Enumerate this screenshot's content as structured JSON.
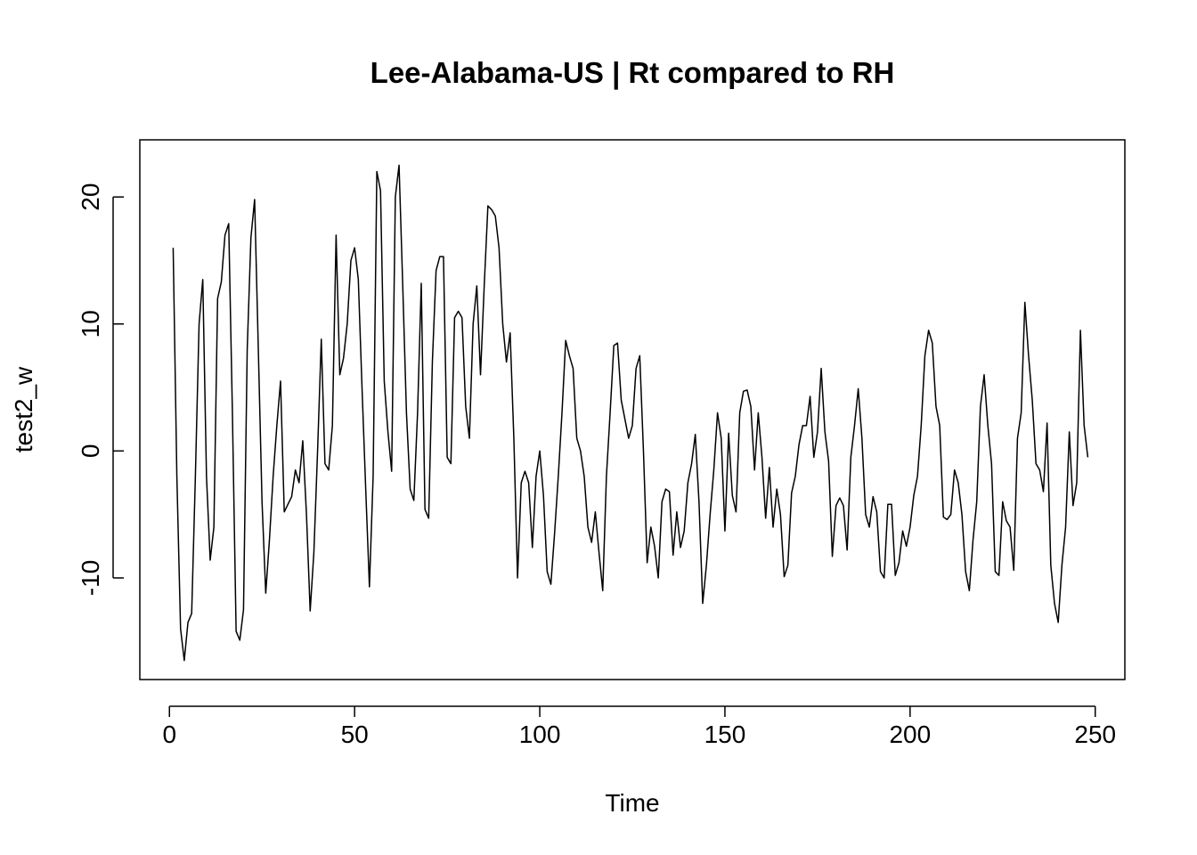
{
  "chart_data": {
    "type": "line",
    "title": "Lee-Alabama-US | Rt compared to RH",
    "xlabel": "Time",
    "ylabel": "test2_w",
    "xlim": [
      -8,
      258
    ],
    "ylim": [
      -18,
      24.5
    ],
    "x_ticks": [
      0,
      50,
      100,
      150,
      200,
      250
    ],
    "x_tick_labels": [
      "0",
      "50",
      "100",
      "150",
      "200",
      "250"
    ],
    "y_ticks": [
      -10,
      0,
      10,
      20
    ],
    "y_tick_labels": [
      "-10",
      "0",
      "10",
      "20"
    ],
    "grid": false,
    "legend": "none",
    "x": [
      1,
      2,
      3,
      4,
      5,
      6,
      7,
      8,
      9,
      10,
      11,
      12,
      13,
      14,
      15,
      16,
      17,
      18,
      19,
      20,
      21,
      22,
      23,
      24,
      25,
      26,
      27,
      28,
      29,
      30,
      31,
      32,
      33,
      34,
      35,
      36,
      37,
      38,
      39,
      40,
      41,
      42,
      43,
      44,
      45,
      46,
      47,
      48,
      49,
      50,
      51,
      52,
      53,
      54,
      55,
      56,
      57,
      58,
      59,
      60,
      61,
      62,
      63,
      64,
      65,
      66,
      67,
      68,
      69,
      70,
      71,
      72,
      73,
      74,
      75,
      76,
      77,
      78,
      79,
      80,
      81,
      82,
      83,
      84,
      85,
      86,
      87,
      88,
      89,
      90,
      91,
      92,
      93,
      94,
      95,
      96,
      97,
      98,
      99,
      100,
      101,
      102,
      103,
      104,
      105,
      106,
      107,
      108,
      109,
      110,
      111,
      112,
      113,
      114,
      115,
      116,
      117,
      118,
      119,
      120,
      121,
      122,
      123,
      124,
      125,
      126,
      127,
      128,
      129,
      130,
      131,
      132,
      133,
      134,
      135,
      136,
      137,
      138,
      139,
      140,
      141,
      142,
      143,
      144,
      145,
      146,
      147,
      148,
      149,
      150,
      151,
      152,
      153,
      154,
      155,
      156,
      157,
      158,
      159,
      160,
      161,
      162,
      163,
      164,
      165,
      166,
      167,
      168,
      169,
      170,
      171,
      172,
      173,
      174,
      175,
      176,
      177,
      178,
      179,
      180,
      181,
      182,
      183,
      184,
      185,
      186,
      187,
      188,
      189,
      190,
      191,
      192,
      193,
      194,
      195,
      196,
      197,
      198,
      199,
      200,
      201,
      202,
      203,
      204,
      205,
      206,
      207,
      208,
      209,
      210,
      211,
      212,
      213,
      214,
      215,
      216,
      217,
      218,
      219,
      220,
      221,
      222,
      223,
      224,
      225,
      226,
      227,
      228,
      229,
      230,
      231,
      232,
      233,
      234,
      235,
      236,
      237,
      238,
      239,
      240,
      241,
      242,
      243,
      244,
      245,
      246,
      247,
      248
    ],
    "series": [
      {
        "values": [
          16.0,
          -2.0,
          -14.0,
          -16.5,
          -13.5,
          -12.8,
          -2.0,
          10.0,
          13.5,
          -2.0,
          -8.6,
          -6.0,
          12.0,
          13.3,
          17.0,
          17.9,
          3.0,
          -14.2,
          -14.9,
          -12.5,
          8.0,
          16.8,
          19.8,
          8.0,
          -4.0,
          -11.2,
          -7.0,
          -2.0,
          2.0,
          5.5,
          -4.8,
          -4.2,
          -3.6,
          -1.5,
          -2.5,
          0.8,
          -5.0,
          -12.6,
          -8.0,
          0.0,
          8.8,
          -1.0,
          -1.5,
          2.0,
          17.0,
          6.0,
          7.3,
          10.0,
          15.0,
          16.0,
          13.5,
          5.0,
          -3.0,
          -10.7,
          -2.0,
          22.0,
          20.5,
          5.5,
          1.5,
          -1.6,
          20.0,
          22.5,
          13.0,
          3.0,
          -3.0,
          -3.9,
          3.0,
          13.2,
          -4.6,
          -5.3,
          7.0,
          14.2,
          15.3,
          15.3,
          -0.5,
          -1.0,
          10.5,
          11.0,
          10.5,
          3.5,
          1.0,
          10.0,
          13.0,
          6.0,
          13.0,
          19.3,
          19.0,
          18.5,
          16.0,
          10.0,
          7.0,
          9.3,
          1.0,
          -10.0,
          -2.5,
          -1.6,
          -2.5,
          -7.6,
          -2.0,
          0.0,
          -3.5,
          -9.5,
          -10.5,
          -6.5,
          -2.0,
          3.0,
          8.7,
          7.5,
          6.5,
          1.0,
          0.0,
          -2.0,
          -6.0,
          -7.2,
          -4.8,
          -8.0,
          -11.0,
          -2.0,
          3.0,
          8.3,
          8.5,
          4.0,
          2.5,
          1.0,
          2.0,
          6.5,
          7.5,
          0.0,
          -8.8,
          -6.0,
          -7.5,
          -10.0,
          -4.0,
          -3.0,
          -3.2,
          -8.2,
          -4.8,
          -7.6,
          -6.3,
          -2.5,
          -1.0,
          1.3,
          -4.0,
          -12.0,
          -9.0,
          -5.0,
          -1.5,
          3.0,
          1.0,
          -6.3,
          1.4,
          -3.5,
          -4.8,
          3.0,
          4.7,
          4.8,
          3.5,
          -1.5,
          3.0,
          -0.5,
          -5.3,
          -1.3,
          -6.0,
          -3.0,
          -5.0,
          -9.9,
          -9.0,
          -3.3,
          -2.0,
          0.5,
          2.0,
          2.0,
          4.3,
          -0.5,
          1.5,
          6.5,
          1.5,
          -0.8,
          -8.3,
          -4.3,
          -3.7,
          -4.3,
          -7.8,
          -0.5,
          2.0,
          4.9,
          1.0,
          -5.0,
          -6.0,
          -3.6,
          -4.8,
          -9.5,
          -10.0,
          -4.2,
          -4.2,
          -9.8,
          -8.8,
          -6.3,
          -7.5,
          -6.0,
          -3.5,
          -2.0,
          2.0,
          7.5,
          9.5,
          8.5,
          3.5,
          2.0,
          -5.2,
          -5.4,
          -5.0,
          -1.5,
          -2.5,
          -5.0,
          -9.5,
          -11.0,
          -7.0,
          -4.0,
          3.5,
          6.0,
          2.0,
          -1.0,
          -9.5,
          -9.8,
          -4.0,
          -5.5,
          -6.0,
          -9.4,
          1.0,
          3.0,
          11.7,
          7.5,
          4.0,
          -1.0,
          -1.5,
          -3.2,
          2.2,
          -9.0,
          -12.0,
          -13.5,
          -9.0,
          -6.0,
          1.5,
          -4.3,
          -2.5,
          9.5,
          2.0,
          -0.5
        ]
      }
    ]
  }
}
